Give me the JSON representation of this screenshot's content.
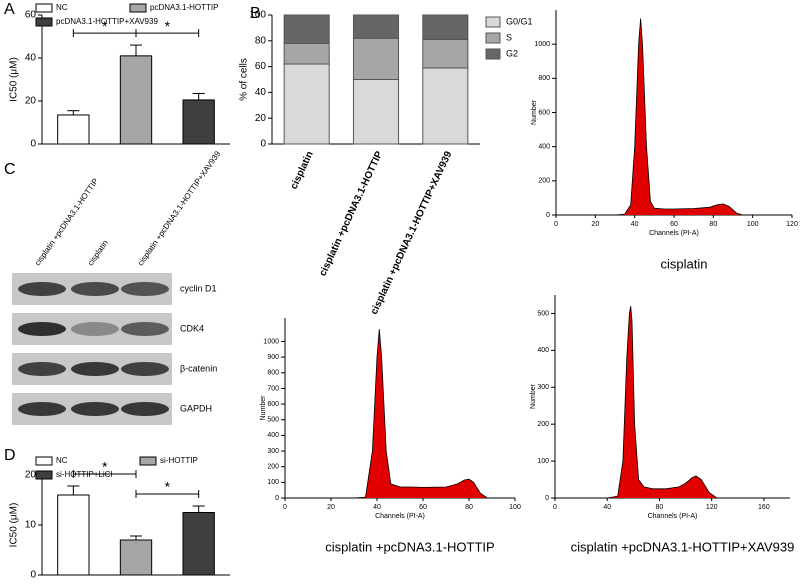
{
  "panel_labels": [
    "A",
    "B",
    "C",
    "D"
  ],
  "chart_data": [
    {
      "type": "bar",
      "ylabel": "IC50 (μM)",
      "categories": [
        "NC",
        "pcDNA3.1-HOTTIP",
        "pcDNA3.1-HOTTIP+XAV939"
      ],
      "values": [
        13.5,
        41,
        20.5
      ],
      "errors": [
        2,
        5,
        3
      ],
      "colors": [
        "#ffffff",
        "#a6a6a6",
        "#3f3f3f"
      ],
      "ylim": [
        0,
        60
      ],
      "yticks": [
        0,
        20,
        40,
        60
      ],
      "annotations": [
        "*",
        "*"
      ]
    },
    {
      "type": "stacked-bar",
      "ylabel": "% of cells",
      "categories": [
        "cisplatin",
        "cisplatin +pcDNA3.1-HOTTIP",
        "cisplatin +pcDNA3.1-HOTTIP+XAV939"
      ],
      "series": [
        {
          "name": "G0/G1",
          "color": "#d9d9d9",
          "values": [
            62,
            50,
            59
          ]
        },
        {
          "name": "S",
          "color": "#a6a6a6",
          "values": [
            16,
            32,
            22
          ]
        },
        {
          "name": "G2",
          "color": "#666666",
          "values": [
            22,
            18,
            19
          ]
        }
      ],
      "ylim": [
        0,
        100
      ],
      "yticks": [
        0,
        20,
        40,
        60,
        80,
        100
      ]
    },
    {
      "type": "line",
      "title": "cisplatin",
      "xlabel": "Channels (PI-A)",
      "ylabel": "Number",
      "x": [
        30,
        35,
        38,
        40,
        42,
        43,
        44,
        46,
        48,
        50,
        55,
        60,
        70,
        78,
        82,
        85,
        88,
        92,
        95
      ],
      "values": [
        0,
        5,
        60,
        400,
        1000,
        1150,
        1000,
        400,
        80,
        40,
        35,
        35,
        38,
        45,
        60,
        65,
        50,
        10,
        0
      ],
      "color": "#e00000",
      "xlim": [
        0,
        120
      ],
      "xticks": [
        0,
        20,
        40,
        60,
        80,
        100,
        120
      ],
      "ylim": [
        0,
        1200
      ],
      "yticks": [
        0,
        200,
        400,
        600,
        800,
        1000
      ]
    },
    {
      "type": "bar",
      "ylabel": "IC50 (μM)",
      "categories": [
        "NC",
        "si-HOTTIP",
        "si-HOTTIP+LiCl"
      ],
      "values": [
        16,
        7,
        12.5
      ],
      "errors": [
        1.8,
        0.8,
        1.3
      ],
      "colors": [
        "#ffffff",
        "#a6a6a6",
        "#3f3f3f"
      ],
      "ylim": [
        0,
        20
      ],
      "yticks": [
        0,
        10,
        20
      ],
      "annotations": [
        "*",
        "*"
      ]
    },
    {
      "type": "line",
      "title": "cisplatin +pcDNA3.1-HOTTIP",
      "xlabel": "Channels (PI-A)",
      "ylabel": "Number",
      "x": [
        30,
        35,
        38,
        40,
        41,
        42,
        44,
        46,
        50,
        55,
        60,
        70,
        75,
        78,
        80,
        82,
        85,
        88
      ],
      "values": [
        0,
        5,
        300,
        900,
        1080,
        900,
        300,
        90,
        70,
        70,
        68,
        70,
        90,
        115,
        120,
        100,
        30,
        0
      ],
      "color": "#e00000",
      "xlim": [
        0,
        100
      ],
      "xticks": [
        0,
        20,
        40,
        60,
        80,
        100
      ],
      "ylim": [
        0,
        1150
      ],
      "yticks": [
        0,
        100,
        200,
        300,
        400,
        500,
        600,
        700,
        800,
        900,
        1000
      ]
    },
    {
      "type": "line",
      "title": "cisplatin +pcDNA3.1-HOTTIP+XAV939",
      "xlabel": "Channels (PI-A)",
      "ylabel": "Number",
      "x": [
        40,
        48,
        52,
        55,
        57,
        58,
        59,
        61,
        64,
        68,
        75,
        85,
        95,
        100,
        105,
        108,
        112,
        118,
        124
      ],
      "values": [
        0,
        5,
        100,
        380,
        500,
        520,
        480,
        200,
        50,
        30,
        25,
        25,
        30,
        40,
        55,
        60,
        50,
        15,
        0
      ],
      "color": "#e00000",
      "xlim": [
        0,
        180
      ],
      "xticks": [
        0,
        40,
        80,
        120,
        160
      ],
      "ylim": [
        0,
        550
      ],
      "yticks": [
        0,
        100,
        200,
        300,
        400,
        500
      ]
    }
  ],
  "blot": {
    "lanes": [
      "cisplatin +pcDNA3.1-HOTTIP",
      "cisplatin",
      "cisplatin +pcDNA3.1-HOTTIP+XAV939"
    ],
    "proteins": [
      "cyclin D1",
      "CDK4",
      "β-catenin",
      "GAPDH"
    ]
  }
}
